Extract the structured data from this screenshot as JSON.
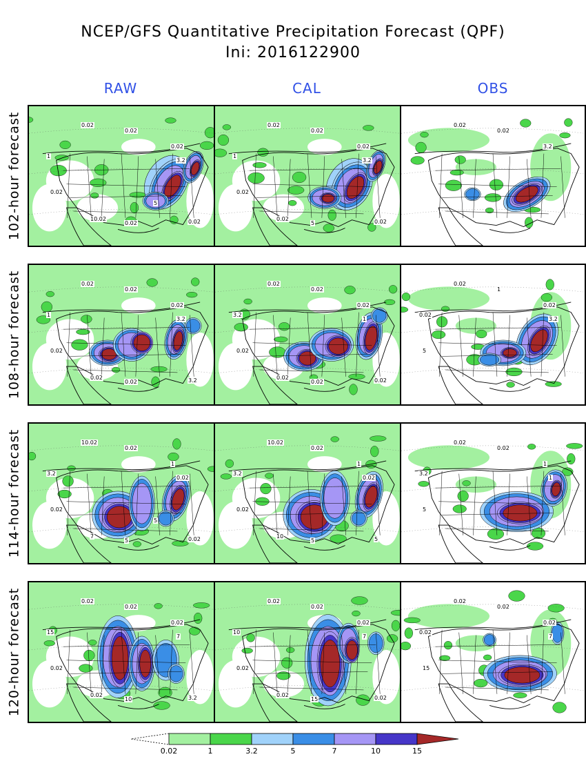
{
  "title": {
    "line1": "NCEP/GFS Quantitative Precipitation Forecast (QPF)",
    "line2": "Ini: 2016122900"
  },
  "columns": [
    "RAW",
    "CAL",
    "OBS"
  ],
  "rows": [
    {
      "label": "102-hour forecast",
      "panels": [
        [
          "0.02",
          "0.02",
          "0.02",
          "0.02",
          "3.2",
          "1",
          "0.02",
          "10.02",
          "0.02",
          "5"
        ],
        [
          "0.02",
          "0.02",
          "0.02",
          "0.02",
          "3.2",
          "1",
          "5",
          "0.02",
          "0.02"
        ],
        [
          "0.02",
          "0.02",
          "3.2"
        ]
      ]
    },
    {
      "label": "108-hour forecast",
      "panels": [
        [
          "0.02",
          "0.02",
          "0.02",
          "0.02",
          "3.2",
          "1",
          "0.02",
          "0.02",
          "3.2"
        ],
        [
          "0.02",
          "0.02",
          "0.02",
          "0.02",
          "1",
          "3.2",
          "0.02",
          "0.02",
          "0.02"
        ],
        [
          "0.02",
          "1",
          "0.02",
          "5",
          "3.2",
          "0.02"
        ]
      ]
    },
    {
      "label": "114-hour forecast",
      "panels": [
        [
          "10.02",
          "0.02",
          "1",
          "0.02",
          "0.02",
          "3.2",
          "5",
          "7",
          "0.02",
          "5"
        ],
        [
          "10.02",
          "0.02",
          "1",
          "0.02",
          "0.02",
          "3.2",
          "5",
          "10",
          "5"
        ],
        [
          "0.02",
          "0.02",
          "1",
          "5",
          "1",
          "3.2"
        ]
      ]
    },
    {
      "label": "120-hour forecast",
      "panels": [
        [
          "0.02",
          "0.02",
          "0.02",
          "0.02",
          "7",
          "15",
          "10",
          "0.02",
          "3.2"
        ],
        [
          "0.02",
          "0.02",
          "0.02",
          "0.02",
          "7",
          "10",
          "15",
          "0.02",
          "0.02"
        ],
        [
          "0.02",
          "0.02",
          "0.02",
          "15",
          "7",
          "0.02"
        ]
      ]
    }
  ],
  "legend": {
    "labels": [
      "0.02",
      "1",
      "3.2",
      "5",
      "7",
      "10",
      "15"
    ],
    "colors": [
      "#a3f0a0",
      "#4ad64a",
      "#a0d2fa",
      "#3a8ee6",
      "#a596f5",
      "#4636c8",
      "#a52828"
    ]
  },
  "colors": {
    "header": "#3050e6",
    "land_light": "#a3f0a0",
    "land_green": "#4ad64a",
    "blue_light": "#a0d2fa",
    "blue": "#3a8ee6",
    "purple_light": "#a596f5",
    "purple": "#4636c8",
    "red": "#a52828"
  }
}
